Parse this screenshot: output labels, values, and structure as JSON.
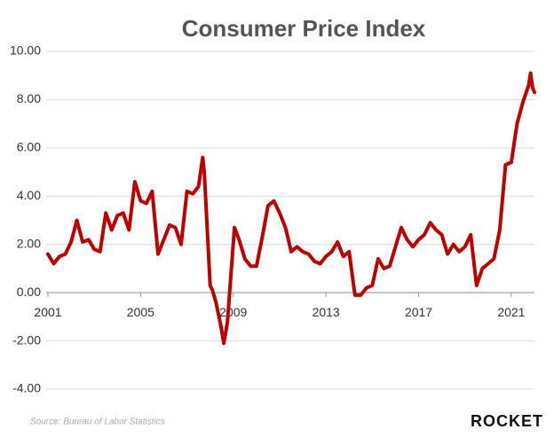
{
  "chart_data": {
    "type": "line",
    "title": "Consumer Price Index",
    "source": "Source: Bureau of Labor Statistics",
    "brand": "ROCKET",
    "x": [
      2001.0,
      2001.25,
      2001.5,
      2001.75,
      2002.0,
      2002.25,
      2002.5,
      2002.75,
      2003.0,
      2003.25,
      2003.5,
      2003.75,
      2004.0,
      2004.25,
      2004.5,
      2004.75,
      2005.0,
      2005.25,
      2005.5,
      2005.75,
      2006.0,
      2006.25,
      2006.5,
      2006.75,
      2007.0,
      2007.25,
      2007.5,
      2007.68,
      2007.75,
      2008.0,
      2008.1,
      2008.25,
      2008.45,
      2008.59,
      2008.75,
      2009.05,
      2009.25,
      2009.5,
      2009.75,
      2010.0,
      2010.25,
      2010.5,
      2010.75,
      2011.0,
      2011.25,
      2011.5,
      2011.75,
      2012.0,
      2012.25,
      2012.5,
      2012.75,
      2013.0,
      2013.25,
      2013.5,
      2013.75,
      2014.0,
      2014.25,
      2014.5,
      2014.75,
      2015.0,
      2015.25,
      2015.5,
      2015.75,
      2016.0,
      2016.25,
      2016.5,
      2016.75,
      2017.0,
      2017.25,
      2017.5,
      2017.75,
      2018.0,
      2018.25,
      2018.5,
      2018.75,
      2019.0,
      2019.25,
      2019.5,
      2019.75,
      2020.0,
      2020.25,
      2020.5,
      2020.75,
      2021.0,
      2021.25,
      2021.5,
      2021.75,
      2021.83,
      2021.92,
      2022.0
    ],
    "series": [
      {
        "name": "CPI",
        "color": "#c00000",
        "values": [
          1.6,
          1.2,
          1.5,
          1.6,
          2.1,
          3.0,
          2.1,
          2.2,
          1.8,
          1.7,
          3.3,
          2.6,
          3.2,
          3.3,
          2.6,
          4.6,
          3.8,
          3.7,
          4.2,
          1.6,
          2.2,
          2.8,
          2.7,
          2.0,
          4.2,
          4.1,
          4.4,
          5.6,
          5.0,
          0.3,
          0.1,
          -0.4,
          -1.3,
          -2.1,
          -1.2,
          2.7,
          2.2,
          1.4,
          1.1,
          1.1,
          2.3,
          3.6,
          3.8,
          3.3,
          2.7,
          1.7,
          1.9,
          1.7,
          1.6,
          1.3,
          1.2,
          1.5,
          1.7,
          2.1,
          1.5,
          1.7,
          -0.1,
          -0.1,
          0.2,
          0.3,
          1.4,
          1.0,
          1.1,
          1.9,
          2.7,
          2.2,
          1.9,
          2.2,
          2.4,
          2.9,
          2.6,
          2.4,
          1.6,
          2.0,
          1.7,
          1.9,
          2.4,
          0.3,
          1.0,
          1.2,
          1.4,
          2.6,
          5.3,
          5.4,
          7.0,
          7.9,
          8.6,
          9.1,
          8.5,
          8.3
        ]
      }
    ],
    "xlim": [
      2001,
      2022
    ],
    "xticks": [
      2001,
      2005,
      2009,
      2013,
      2017,
      2021
    ],
    "ylim": [
      -4,
      10
    ],
    "yticks": [
      {
        "value": 10,
        "label": "10.00"
      },
      {
        "value": 8,
        "label": "8.00"
      },
      {
        "value": 6,
        "label": "6.00"
      },
      {
        "value": 4,
        "label": "4.00"
      },
      {
        "value": 2,
        "label": "2.00"
      },
      {
        "value": 0,
        "label": "0.00"
      },
      {
        "value": -2,
        "label": "-2.00"
      },
      {
        "value": -4,
        "label": "-4.00"
      }
    ],
    "grid": true
  }
}
